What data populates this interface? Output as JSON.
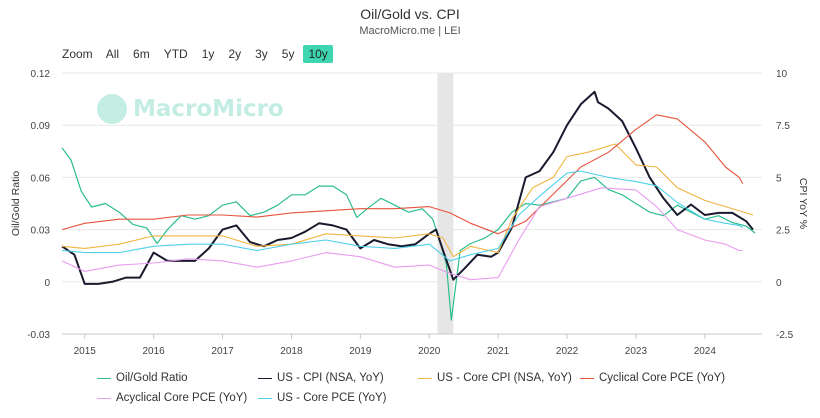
{
  "header": {
    "title": "Oil/Gold vs. CPI",
    "subtitle": "MacroMicro.me | LEI"
  },
  "zoom": {
    "label": "Zoom",
    "options": [
      "All",
      "6m",
      "YTD",
      "1y",
      "2y",
      "3y",
      "5y",
      "10y"
    ],
    "selected": "10y"
  },
  "watermark": {
    "text": "MacroMicro",
    "icon": "macromicro-logo-icon"
  },
  "colors": {
    "oil_gold": "#2bbd8e",
    "cpi": "#1a1a2e",
    "core_cpi": "#f0b542",
    "cyclical_pce": "#e5533d",
    "acyclical_pce": "#e99cf0",
    "core_pce": "#4fd0e8",
    "shade": "#e6e6e6",
    "grid": "#e8e8e8"
  },
  "chart_data": {
    "type": "line",
    "x_axis": {
      "min": 2014.67,
      "max": 2024.83,
      "ticks": [
        "2015",
        "2016",
        "2017",
        "2018",
        "2019",
        "2020",
        "2021",
        "2022",
        "2023",
        "2024"
      ]
    },
    "y_left": {
      "label": "Oil/Gold Ratio",
      "min": -0.03,
      "max": 0.12,
      "ticks": [
        "-0.03",
        "0",
        "0.03",
        "0.06",
        "0.09",
        "0.12"
      ]
    },
    "y_right": {
      "label": "CPI YoY %",
      "min": -2.5,
      "max": 10,
      "ticks": [
        "-2.5",
        "0",
        "2.5",
        "5",
        "7.5",
        "10"
      ]
    },
    "recession": {
      "start": 2020.12,
      "end": 2020.35
    },
    "series": [
      {
        "name": "Oil/Gold Ratio",
        "axis": "left",
        "color_key": "oil_gold",
        "x": [
          2014.67,
          2014.8,
          2014.95,
          2015.1,
          2015.3,
          2015.5,
          2015.7,
          2015.9,
          2016.05,
          2016.2,
          2016.4,
          2016.6,
          2016.8,
          2017.0,
          2017.2,
          2017.4,
          2017.6,
          2017.8,
          2018.0,
          2018.2,
          2018.4,
          2018.6,
          2018.8,
          2018.95,
          2019.1,
          2019.3,
          2019.5,
          2019.7,
          2019.9,
          2020.05,
          2020.15,
          2020.25,
          2020.32,
          2020.45,
          2020.6,
          2020.8,
          2021.0,
          2021.2,
          2021.4,
          2021.6,
          2021.8,
          2022.0,
          2022.2,
          2022.4,
          2022.6,
          2022.8,
          2023.0,
          2023.2,
          2023.4,
          2023.6,
          2023.8,
          2024.0,
          2024.2,
          2024.4,
          2024.6,
          2024.73
        ],
        "values": [
          0.077,
          0.07,
          0.052,
          0.043,
          0.045,
          0.04,
          0.033,
          0.031,
          0.022,
          0.03,
          0.038,
          0.036,
          0.038,
          0.044,
          0.046,
          0.038,
          0.04,
          0.044,
          0.05,
          0.05,
          0.055,
          0.055,
          0.05,
          0.037,
          0.042,
          0.048,
          0.044,
          0.04,
          0.042,
          0.036,
          0.024,
          0.01,
          -0.022,
          0.018,
          0.022,
          0.025,
          0.03,
          0.04,
          0.045,
          0.044,
          0.046,
          0.048,
          0.058,
          0.06,
          0.053,
          0.05,
          0.045,
          0.04,
          0.038,
          0.044,
          0.04,
          0.036,
          0.038,
          0.034,
          0.032,
          0.028
        ]
      },
      {
        "name": "US - CPI (NSA, YoY)",
        "axis": "right",
        "color_key": "cpi",
        "x": [
          2014.67,
          2014.85,
          2015.0,
          2015.2,
          2015.4,
          2015.6,
          2015.8,
          2016.0,
          2016.2,
          2016.4,
          2016.6,
          2016.8,
          2017.0,
          2017.2,
          2017.4,
          2017.6,
          2017.8,
          2018.0,
          2018.2,
          2018.4,
          2018.6,
          2018.8,
          2019.0,
          2019.2,
          2019.4,
          2019.6,
          2019.8,
          2020.0,
          2020.1,
          2020.2,
          2020.35,
          2020.5,
          2020.7,
          2020.9,
          2021.0,
          2021.2,
          2021.4,
          2021.6,
          2021.8,
          2022.0,
          2022.2,
          2022.4,
          2022.45,
          2022.6,
          2022.8,
          2023.0,
          2023.2,
          2023.4,
          2023.6,
          2023.8,
          2024.0,
          2024.2,
          2024.4,
          2024.6,
          2024.7
        ],
        "values": [
          1.7,
          1.3,
          -0.1,
          -0.1,
          0,
          0.2,
          0.2,
          1.4,
          1,
          1,
          1,
          1.6,
          2.5,
          2.7,
          1.9,
          1.7,
          2,
          2.1,
          2.4,
          2.8,
          2.7,
          2.5,
          1.6,
          2,
          1.8,
          1.7,
          1.8,
          2.3,
          2.5,
          1.5,
          0.1,
          0.6,
          1.3,
          1.2,
          1.4,
          2.6,
          5,
          5.3,
          6.2,
          7.5,
          8.5,
          9.1,
          8.6,
          8.3,
          7.7,
          6.4,
          5,
          4,
          3.2,
          3.7,
          3.2,
          3.3,
          3.3,
          2.9,
          2.5
        ]
      },
      {
        "name": "US - Core CPI (NSA, YoY)",
        "axis": "right",
        "color_key": "core_cpi",
        "x": [
          2014.67,
          2015.0,
          2015.5,
          2016.0,
          2016.5,
          2017.0,
          2017.5,
          2018.0,
          2018.5,
          2019.0,
          2019.5,
          2020.0,
          2020.2,
          2020.35,
          2020.6,
          2021.0,
          2021.2,
          2021.5,
          2021.8,
          2022.0,
          2022.3,
          2022.7,
          2023.0,
          2023.3,
          2023.6,
          2024.0,
          2024.3,
          2024.6,
          2024.7
        ],
        "values": [
          1.7,
          1.6,
          1.8,
          2.2,
          2.2,
          2.2,
          1.7,
          1.8,
          2.3,
          2.2,
          2.1,
          2.3,
          2.1,
          1.2,
          1.7,
          1.4,
          3,
          4.5,
          5,
          6,
          6.2,
          6.6,
          5.6,
          5.5,
          4.5,
          3.9,
          3.6,
          3.3,
          3.2
        ]
      },
      {
        "name": "Cyclical Core PCE (YoY)",
        "axis": "right",
        "color_key": "cyclical_pce",
        "x": [
          2014.67,
          2015.0,
          2015.5,
          2016.0,
          2016.5,
          2017.0,
          2017.5,
          2018.0,
          2018.5,
          2019.0,
          2019.5,
          2020.0,
          2020.3,
          2020.6,
          2021.0,
          2021.4,
          2021.8,
          2022.2,
          2022.6,
          2023.0,
          2023.3,
          2023.6,
          2024.0,
          2024.3,
          2024.5,
          2024.55
        ],
        "values": [
          2.5,
          2.8,
          3,
          3,
          3.2,
          3.2,
          3.1,
          3.3,
          3.4,
          3.5,
          3.5,
          3.6,
          3.3,
          2.8,
          2.3,
          2.9,
          4.2,
          5.5,
          6.2,
          7.3,
          8,
          7.8,
          6.7,
          5.5,
          5,
          4.7
        ]
      },
      {
        "name": "Acyclical Core PCE (YoY)",
        "axis": "right",
        "color_key": "acyclical_pce",
        "x": [
          2014.67,
          2015.0,
          2015.5,
          2016.0,
          2016.5,
          2017.0,
          2017.5,
          2018.0,
          2018.5,
          2019.0,
          2019.5,
          2020.0,
          2020.3,
          2020.6,
          2021.0,
          2021.3,
          2021.6,
          2022.0,
          2022.5,
          2023.0,
          2023.3,
          2023.6,
          2024.0,
          2024.3,
          2024.5,
          2024.55
        ],
        "values": [
          1,
          0.5,
          0.8,
          0.9,
          1.1,
          1,
          0.7,
          1,
          1.4,
          1.2,
          0.7,
          0.8,
          0.4,
          0.1,
          0.2,
          2,
          3.6,
          4,
          4.5,
          4.4,
          3.6,
          2.5,
          2,
          1.8,
          1.5,
          1.5
        ]
      },
      {
        "name": "US - Core PCE (YoY)",
        "axis": "right",
        "color_key": "core_pce",
        "x": [
          2014.67,
          2015.0,
          2015.5,
          2016.0,
          2016.5,
          2017.0,
          2017.5,
          2018.0,
          2018.5,
          2019.0,
          2019.5,
          2020.0,
          2020.3,
          2020.6,
          2021.0,
          2021.3,
          2021.6,
          2022.0,
          2022.2,
          2022.6,
          2023.0,
          2023.3,
          2023.6,
          2024.0,
          2024.3,
          2024.5,
          2024.55
        ],
        "values": [
          1.5,
          1.4,
          1.4,
          1.7,
          1.8,
          1.8,
          1.5,
          1.8,
          2,
          1.7,
          1.6,
          1.8,
          1,
          1.3,
          1.6,
          3.2,
          4.1,
          5.2,
          5.3,
          5,
          4.8,
          4.6,
          3.8,
          3,
          2.8,
          2.7,
          2.6
        ]
      }
    ]
  },
  "legend": [
    "Oil/Gold Ratio",
    "US - CPI (NSA, YoY)",
    "US - Core CPI (NSA, YoY)",
    "Cyclical Core PCE (YoY)",
    "Acyclical Core PCE (YoY)",
    "US - Core PCE (YoY)"
  ]
}
